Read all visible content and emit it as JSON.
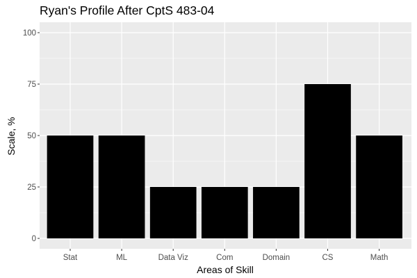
{
  "chart_data": {
    "type": "bar",
    "title": "Ryan's Profile After CptS 483-04",
    "xlabel": "Areas of Skill",
    "ylabel": "Scale, %",
    "categories": [
      "Stat",
      "ML",
      "Data Viz",
      "Com",
      "Domain",
      "CS",
      "Math"
    ],
    "values": [
      50,
      50,
      25,
      25,
      25,
      75,
      50
    ],
    "ylim": [
      0,
      100
    ],
    "yticks": [
      0,
      25,
      50,
      75,
      100
    ],
    "grid": true,
    "bar_color": "#000000",
    "panel_color": "#ebebeb",
    "grid_color": "#ffffff"
  }
}
